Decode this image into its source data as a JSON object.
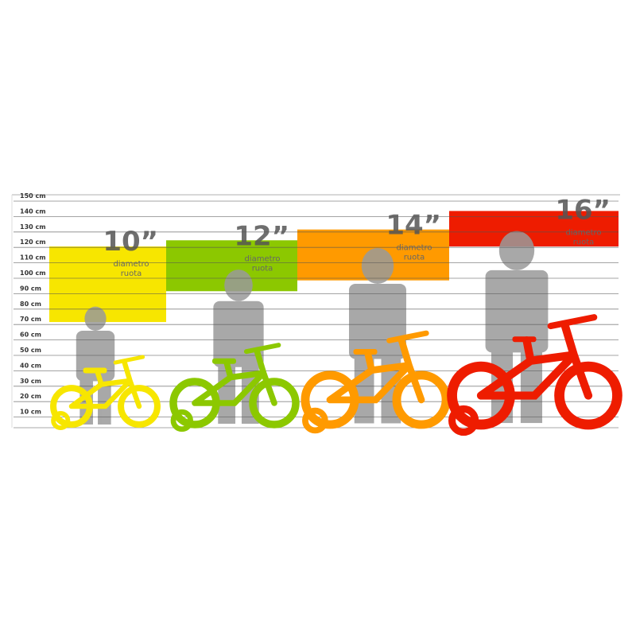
{
  "axis": {
    "unit": "cm",
    "ticks": [
      "150 cm",
      "140 cm",
      "130 cm",
      "120 cm",
      "110 cm",
      "100 cm",
      "90 cm",
      "80 cm",
      "70 cm",
      "60 cm",
      "50 cm",
      "40 cm",
      "30 cm",
      "20 cm",
      "10 cm"
    ]
  },
  "sizes": [
    {
      "label": "10”",
      "sub1": "diametro",
      "sub2": "ruota",
      "color": "#f7e600",
      "height_range_cm": [
        68,
        117
      ],
      "child_height_cm": 78
    },
    {
      "label": "12”",
      "sub1": "diametro",
      "sub2": "ruota",
      "color": "#8cc800",
      "height_range_cm": [
        88,
        121
      ],
      "child_height_cm": 102
    },
    {
      "label": "14”",
      "sub1": "diametro",
      "sub2": "ruota",
      "color": "#ff9a00",
      "height_range_cm": [
        95,
        128
      ],
      "child_height_cm": 116
    },
    {
      "label": "16”",
      "sub1": "diametro",
      "sub2": "ruota",
      "color": "#ee1c00",
      "height_range_cm": [
        117,
        140
      ],
      "child_height_cm": 127
    }
  ],
  "silhouette_color": "#9a9a9a"
}
